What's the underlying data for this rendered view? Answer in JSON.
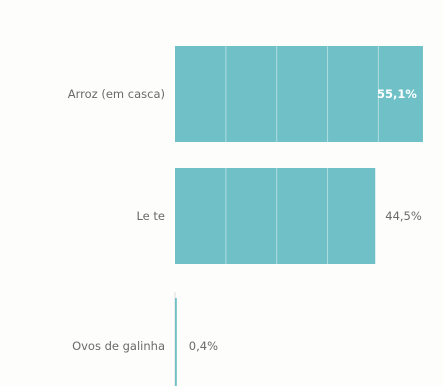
{
  "chart_data": {
    "type": "bar",
    "orientation": "horizontal",
    "categories": [
      "Arroz (em casca)",
      "Le te",
      "Ovos de galinha"
    ],
    "values": [
      55.1,
      44.5,
      0.4
    ],
    "value_labels": [
      "55,1%",
      "44,5%",
      "0,4%"
    ],
    "unit": "%",
    "xlim": [
      0,
      67
    ],
    "grid": true,
    "legend": "none",
    "colors": {
      "bar": "#6fc1c7",
      "category_text": "#6a6a6a",
      "value_inside": "#ffffff",
      "value_outside": "#6a6a6a",
      "axis": "#dddddd"
    }
  }
}
